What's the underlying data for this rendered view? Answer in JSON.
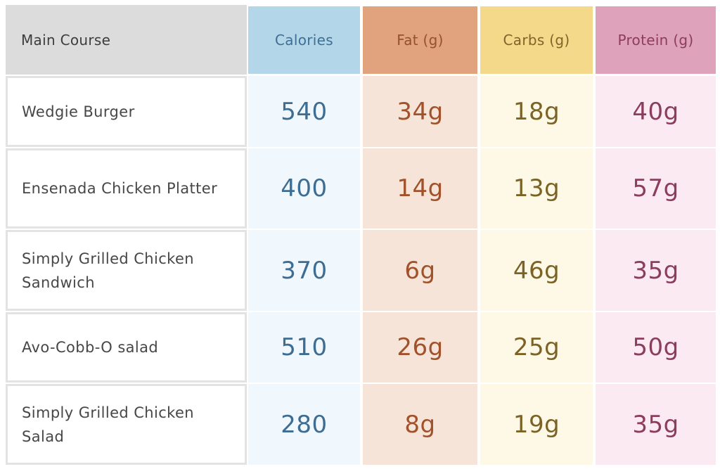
{
  "header": {
    "main_course": "Main Course",
    "calories": "Calories",
    "fat": "Fat (g)",
    "carbs": "Carbs (g)",
    "protein": "Protein (g)"
  },
  "rows": [
    {
      "name": "Wedgie Burger",
      "calories": "540",
      "fat": "34g",
      "carbs": "18g",
      "protein": "40g"
    },
    {
      "name": "Ensenada Chicken Platter",
      "calories": "400",
      "fat": "14g",
      "carbs": "13g",
      "protein": "57g"
    },
    {
      "name": "Simply Grilled Chicken Sandwich",
      "calories": "370",
      "fat": "6g",
      "carbs": "46g",
      "protein": "35g"
    },
    {
      "name": "Avo-Cobb-O salad",
      "calories": "510",
      "fat": "26g",
      "carbs": "25g",
      "protein": "50g"
    },
    {
      "name": "Simply Grilled Chicken Salad",
      "calories": "280",
      "fat": "8g",
      "carbs": "19g",
      "protein": "35g"
    }
  ],
  "colors": {
    "main_header": "#dcdcdc",
    "calories_header": "#b4d6e9",
    "fat_header": "#e0a37d",
    "carbs_header": "#f5d98b",
    "protein_header": "#dfa2bb"
  }
}
